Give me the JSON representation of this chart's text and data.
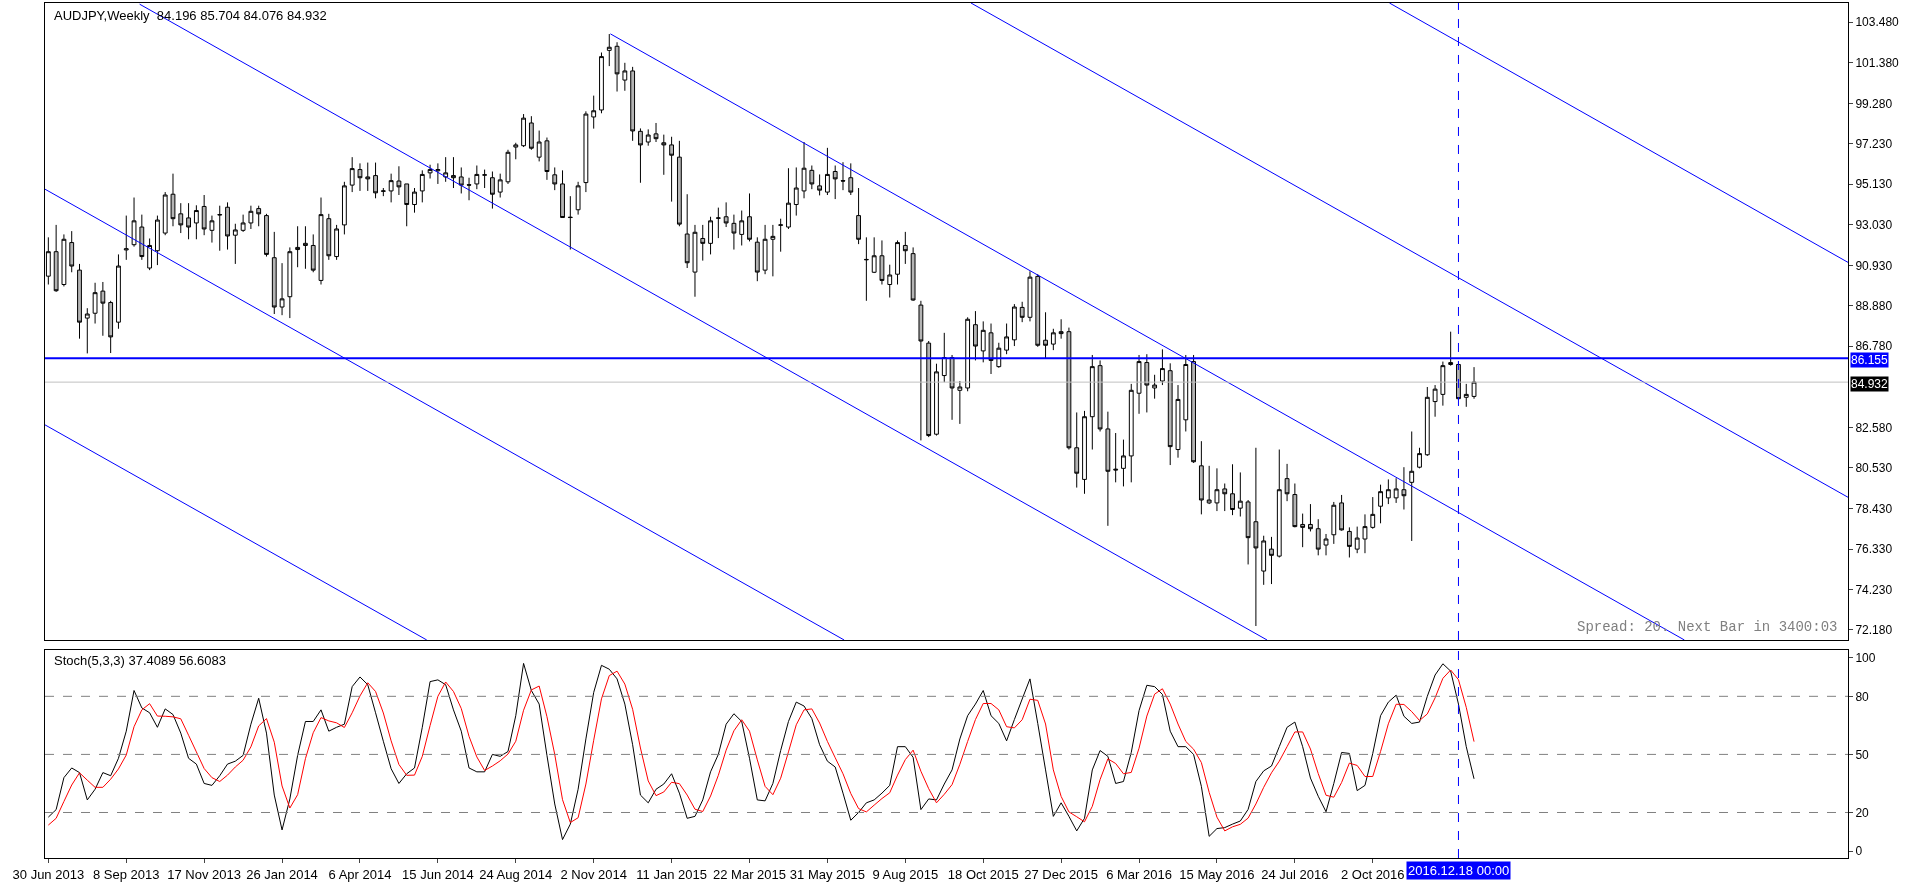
{
  "chart_data": [
    {
      "type": "candlestick",
      "title": "AUDJPY,Weekly  84.196 85.704 84.076 84.932",
      "x": [
        "2013-06-30",
        "2013-07-07",
        "2013-07-14",
        "2013-07-21",
        "2013-07-28",
        "2013-08-04",
        "2013-08-11",
        "2013-08-18",
        "2013-08-25",
        "2013-09-01",
        "2013-09-08",
        "2013-09-15",
        "2013-09-22",
        "2013-09-29",
        "2013-10-06",
        "2013-10-13",
        "2013-10-20",
        "2013-10-27",
        "2013-11-03",
        "2013-11-10",
        "2013-11-17",
        "2013-11-24",
        "2013-12-01",
        "2013-12-08",
        "2013-12-15",
        "2013-12-22",
        "2013-12-29",
        "2014-01-05",
        "2014-01-12",
        "2014-01-19",
        "2014-01-26",
        "2014-02-02",
        "2014-02-09",
        "2014-02-16",
        "2014-02-23",
        "2014-03-02",
        "2014-03-09",
        "2014-03-16",
        "2014-03-23",
        "2014-03-30",
        "2014-04-06",
        "2014-04-13",
        "2014-04-20",
        "2014-04-27",
        "2014-05-04",
        "2014-05-11",
        "2014-05-18",
        "2014-05-25",
        "2014-06-01",
        "2014-06-08",
        "2014-06-15",
        "2014-06-22",
        "2014-06-29",
        "2014-07-06",
        "2014-07-13",
        "2014-07-20",
        "2014-07-27",
        "2014-08-03",
        "2014-08-10",
        "2014-08-17",
        "2014-08-24",
        "2014-08-31",
        "2014-09-07",
        "2014-09-14",
        "2014-09-21",
        "2014-09-28",
        "2014-10-05",
        "2014-10-12",
        "2014-10-19",
        "2014-10-26",
        "2014-11-02",
        "2014-11-09",
        "2014-11-16",
        "2014-11-23",
        "2014-11-30",
        "2014-12-07",
        "2014-12-14",
        "2014-12-21",
        "2014-12-28",
        "2015-01-04",
        "2015-01-11",
        "2015-01-18",
        "2015-01-25",
        "2015-02-01",
        "2015-02-08",
        "2015-02-15",
        "2015-02-22",
        "2015-03-01",
        "2015-03-08",
        "2015-03-15",
        "2015-03-22",
        "2015-03-29",
        "2015-04-05",
        "2015-04-12",
        "2015-04-19",
        "2015-04-26",
        "2015-05-03",
        "2015-05-10",
        "2015-05-17",
        "2015-05-24",
        "2015-05-31",
        "2015-06-07",
        "2015-06-14",
        "2015-06-21",
        "2015-06-28",
        "2015-07-05",
        "2015-07-12",
        "2015-07-19",
        "2015-07-26",
        "2015-08-02",
        "2015-08-09",
        "2015-08-16",
        "2015-08-23",
        "2015-08-30",
        "2015-09-06",
        "2015-09-13",
        "2015-09-20",
        "2015-09-27",
        "2015-10-04",
        "2015-10-11",
        "2015-10-18",
        "2015-10-25",
        "2015-11-01",
        "2015-11-08",
        "2015-11-15",
        "2015-11-22",
        "2015-11-29",
        "2015-12-06",
        "2015-12-13",
        "2015-12-20",
        "2015-12-27",
        "2016-01-03",
        "2016-01-10",
        "2016-01-17",
        "2016-01-24",
        "2016-01-31",
        "2016-02-07",
        "2016-02-14",
        "2016-02-21",
        "2016-02-28",
        "2016-03-06",
        "2016-03-13",
        "2016-03-20",
        "2016-03-27",
        "2016-04-03",
        "2016-04-10",
        "2016-04-17",
        "2016-04-24",
        "2016-05-01",
        "2016-05-08",
        "2016-05-15",
        "2016-05-22",
        "2016-05-29",
        "2016-06-05",
        "2016-06-12",
        "2016-06-19",
        "2016-06-26",
        "2016-07-03",
        "2016-07-10",
        "2016-07-17",
        "2016-07-24",
        "2016-07-31",
        "2016-08-07",
        "2016-08-14",
        "2016-08-21",
        "2016-08-28",
        "2016-09-04",
        "2016-09-11",
        "2016-09-18",
        "2016-09-25",
        "2016-10-02",
        "2016-10-09",
        "2016-10-16",
        "2016-10-23",
        "2016-10-30",
        "2016-11-06",
        "2016-11-13",
        "2016-11-20",
        "2016-11-27",
        "2016-12-04",
        "2016-12-11",
        "2016-12-18",
        "2016-12-25",
        "2017-01-01"
      ],
      "ohlc": [
        [
          90.39,
          92.39,
          89.96,
          91.65
        ],
        [
          91.65,
          93.03,
          89.58,
          89.64
        ],
        [
          89.96,
          92.54,
          89.86,
          92.29
        ],
        [
          92.12,
          92.71,
          90.59,
          90.91
        ],
        [
          90.7,
          91.02,
          87.17,
          88.02
        ],
        [
          88.23,
          88.74,
          86.41,
          88.44
        ],
        [
          88.48,
          90.05,
          87.95,
          89.54
        ],
        [
          89.62,
          90.09,
          87.32,
          89.0
        ],
        [
          89.03,
          89.12,
          86.43,
          87.26
        ],
        [
          88.02,
          91.51,
          87.68,
          90.91
        ],
        [
          91.74,
          93.51,
          91.23,
          91.8
        ],
        [
          92.01,
          94.44,
          91.91,
          93.24
        ],
        [
          92.92,
          93.56,
          91.23,
          91.4
        ],
        [
          90.81,
          92.33,
          90.7,
          91.97
        ],
        [
          91.7,
          93.51,
          90.96,
          93.28
        ],
        [
          92.61,
          94.72,
          92.5,
          94.57
        ],
        [
          94.61,
          95.67,
          92.96,
          93.35
        ],
        [
          93.6,
          94.15,
          92.61,
          93.03
        ],
        [
          93.39,
          94.15,
          92.29,
          92.92
        ],
        [
          93.13,
          94.04,
          92.29,
          93.77
        ],
        [
          93.98,
          94.57,
          92.5,
          92.82
        ],
        [
          92.75,
          93.51,
          92.12,
          93.24
        ],
        [
          93.54,
          94.02,
          91.7,
          93.56
        ],
        [
          93.94,
          94.19,
          91.76,
          92.46
        ],
        [
          92.5,
          93.09,
          91.02,
          92.77
        ],
        [
          92.75,
          93.56,
          92.67,
          93.13
        ],
        [
          93.13,
          94.02,
          92.82,
          93.73
        ],
        [
          93.87,
          94.02,
          92.96,
          93.6
        ],
        [
          93.51,
          93.6,
          91.4,
          91.51
        ],
        [
          91.34,
          92.67,
          88.44,
          88.8
        ],
        [
          88.8,
          91.06,
          88.38,
          89.22
        ],
        [
          89.33,
          91.87,
          88.23,
          91.65
        ],
        [
          91.76,
          92.96,
          90.85,
          91.87
        ],
        [
          91.97,
          92.96,
          90.77,
          92.08
        ],
        [
          91.97,
          92.54,
          90.59,
          90.7
        ],
        [
          90.17,
          94.44,
          89.96,
          93.56
        ],
        [
          93.35,
          93.6,
          91.23,
          91.44
        ],
        [
          91.4,
          93.03,
          91.23,
          92.82
        ],
        [
          93.03,
          95.25,
          92.54,
          95.04
        ],
        [
          95.08,
          96.52,
          94.72,
          95.93
        ],
        [
          95.88,
          96.2,
          94.78,
          95.46
        ],
        [
          95.5,
          96.24,
          94.78,
          95.4
        ],
        [
          95.57,
          96.24,
          94.4,
          94.68
        ],
        [
          94.76,
          94.93,
          94.51,
          94.78
        ],
        [
          94.78,
          95.67,
          94.19,
          95.31
        ],
        [
          95.29,
          96.05,
          94.57,
          94.99
        ],
        [
          95.14,
          95.14,
          92.96,
          94.08
        ],
        [
          94.08,
          94.93,
          93.66,
          94.72
        ],
        [
          94.78,
          95.84,
          94.19,
          95.63
        ],
        [
          95.71,
          96.13,
          95.42,
          95.88
        ],
        [
          95.82,
          96.2,
          95.14,
          95.88
        ],
        [
          95.5,
          96.52,
          95.25,
          95.71
        ],
        [
          95.57,
          96.52,
          94.93,
          95.46
        ],
        [
          95.5,
          95.99,
          94.65,
          95.08
        ],
        [
          95.1,
          95.46,
          94.3,
          95.08
        ],
        [
          95.14,
          96.09,
          94.87,
          95.63
        ],
        [
          95.59,
          95.88,
          94.93,
          95.61
        ],
        [
          95.46,
          95.78,
          93.87,
          94.61
        ],
        [
          94.72,
          95.67,
          94.44,
          95.35
        ],
        [
          95.25,
          96.9,
          95.14,
          96.77
        ],
        [
          97.04,
          97.26,
          96.41,
          97.15
        ],
        [
          97.11,
          98.74,
          97.04,
          98.53
        ],
        [
          98.28,
          98.63,
          96.9,
          96.98
        ],
        [
          96.52,
          97.89,
          96.3,
          97.3
        ],
        [
          97.36,
          97.53,
          95.35,
          95.78
        ],
        [
          95.61,
          95.99,
          94.82,
          95.14
        ],
        [
          95.14,
          95.84,
          93.41,
          93.41
        ],
        [
          93.43,
          94.51,
          91.76,
          93.41
        ],
        [
          93.81,
          95.25,
          93.56,
          95.04
        ],
        [
          95.21,
          98.88,
          94.72,
          98.74
        ],
        [
          98.59,
          99.69,
          97.99,
          98.91
        ],
        [
          98.95,
          101.91,
          98.78,
          101.7
        ],
        [
          102.02,
          102.86,
          101.21,
          102.18
        ],
        [
          102.23,
          102.44,
          99.9,
          100.81
        ],
        [
          100.49,
          101.38,
          99.94,
          100.96
        ],
        [
          100.96,
          101.17,
          97.36,
          97.87
        ],
        [
          97.85,
          98.0,
          95.2,
          97.15
        ],
        [
          97.3,
          97.95,
          97.11,
          97.66
        ],
        [
          97.72,
          98.28,
          97.3,
          97.47
        ],
        [
          97.26,
          97.68,
          95.61,
          97.15
        ],
        [
          97.15,
          97.57,
          94.23,
          96.62
        ],
        [
          96.52,
          97.36,
          92.96,
          93.07
        ],
        [
          92.56,
          94.61,
          90.81,
          91.08
        ],
        [
          90.6,
          93.03,
          89.33,
          92.65
        ],
        [
          92.33,
          93.03,
          91.19,
          92.08
        ],
        [
          92.08,
          93.45,
          91.51,
          93.24
        ],
        [
          93.37,
          93.92,
          92.35,
          93.39
        ],
        [
          93.45,
          94.19,
          92.92,
          93.13
        ],
        [
          93.11,
          93.56,
          91.76,
          92.61
        ],
        [
          92.54,
          93.77,
          91.97,
          93.24
        ],
        [
          93.45,
          94.65,
          92.18,
          92.29
        ],
        [
          92.14,
          92.39,
          90.13,
          90.6
        ],
        [
          90.7,
          93.03,
          90.49,
          92.29
        ],
        [
          92.29,
          93.03,
          90.38,
          92.44
        ],
        [
          93.01,
          93.35,
          91.65,
          93.03
        ],
        [
          92.92,
          95.95,
          92.82,
          94.15
        ],
        [
          94.08,
          95.99,
          93.51,
          94.93
        ],
        [
          94.78,
          97.3,
          94.4,
          95.95
        ],
        [
          95.84,
          96.09,
          94.87,
          95.14
        ],
        [
          95.04,
          95.63,
          94.55,
          94.82
        ],
        [
          94.72,
          97.0,
          94.57,
          95.63
        ],
        [
          95.78,
          96.09,
          94.36,
          95.4
        ],
        [
          95.31,
          96.26,
          94.82,
          95.29
        ],
        [
          95.46,
          96.2,
          94.57,
          94.72
        ],
        [
          93.51,
          94.93,
          92.04,
          92.29
        ],
        [
          91.23,
          92.39,
          89.12,
          91.25
        ],
        [
          90.59,
          92.39,
          90.55,
          91.44
        ],
        [
          91.44,
          92.23,
          89.96,
          90.17
        ],
        [
          89.96,
          90.98,
          89.29,
          90.45
        ],
        [
          90.49,
          92.23,
          89.96,
          92.12
        ],
        [
          91.97,
          92.67,
          91.02,
          91.7
        ],
        [
          91.55,
          91.87,
          89.12,
          89.16
        ],
        [
          88.9,
          89.12,
          81.93,
          87.05
        ],
        [
          86.94,
          87.05,
          82.1,
          82.18
        ],
        [
          82.25,
          85.88,
          82.18,
          85.46
        ],
        [
          85.27,
          87.47,
          84.93,
          86.2
        ],
        [
          86.2,
          86.33,
          82.99,
          84.63
        ],
        [
          84.51,
          84.99,
          82.78,
          84.68
        ],
        [
          84.63,
          88.27,
          84.46,
          88.17
        ],
        [
          87.89,
          88.59,
          86.05,
          86.79
        ],
        [
          86.54,
          88.06,
          85.95,
          87.6
        ],
        [
          87.47,
          87.95,
          85.35,
          86.05
        ],
        [
          85.73,
          86.96,
          85.67,
          86.68
        ],
        [
          86.58,
          87.95,
          86.37,
          87.26
        ],
        [
          87.11,
          88.95,
          86.79,
          88.8
        ],
        [
          88.78,
          89.07,
          88.02,
          88.27
        ],
        [
          88.27,
          90.64,
          88.06,
          90.34
        ],
        [
          90.38,
          90.49,
          86.75,
          86.83
        ],
        [
          87.09,
          88.53,
          86.16,
          86.83
        ],
        [
          86.89,
          87.68,
          86.58,
          87.47
        ],
        [
          87.53,
          88.17,
          87.17,
          87.43
        ],
        [
          87.53,
          87.74,
          81.46,
          81.55
        ],
        [
          81.55,
          83.37,
          79.5,
          80.24
        ],
        [
          79.92,
          83.45,
          79.18,
          83.15
        ],
        [
          83.15,
          86.33,
          81.46,
          85.73
        ],
        [
          85.78,
          86.05,
          82.39,
          82.52
        ],
        [
          82.52,
          83.41,
          77.53,
          80.34
        ],
        [
          80.45,
          82.31,
          79.77,
          80.41
        ],
        [
          80.49,
          81.97,
          79.56,
          81.13
        ],
        [
          81.13,
          84.84,
          79.77,
          84.51
        ],
        [
          84.36,
          86.33,
          83.3,
          85.99
        ],
        [
          85.94,
          86.37,
          83.37,
          84.78
        ],
        [
          84.63,
          85.31,
          84.08,
          84.78
        ],
        [
          84.99,
          86.62,
          84.78,
          85.63
        ],
        [
          85.52,
          85.9,
          80.66,
          81.61
        ],
        [
          81.46,
          84.78,
          81.04,
          84.04
        ],
        [
          82.99,
          86.33,
          82.39,
          85.84
        ],
        [
          85.99,
          86.33,
          80.77,
          80.83
        ],
        [
          80.62,
          81.89,
          78.12,
          78.86
        ],
        [
          78.71,
          80.62,
          78.65,
          78.86
        ],
        [
          78.71,
          80.49,
          78.29,
          79.39
        ],
        [
          79.43,
          79.71,
          78.29,
          79.18
        ],
        [
          79.18,
          80.7,
          78.08,
          78.37
        ],
        [
          78.44,
          80.28,
          78.01,
          78.8
        ],
        [
          78.76,
          78.86,
          75.54,
          76.92
        ],
        [
          77.74,
          81.55,
          72.37,
          76.39
        ],
        [
          75.2,
          77.02,
          74.49,
          76.75
        ],
        [
          76.33,
          76.96,
          74.53,
          76.01
        ],
        [
          75.97,
          81.46,
          75.9,
          79.39
        ],
        [
          79.96,
          80.72,
          78.8,
          79.18
        ],
        [
          79.14,
          79.71,
          77.45,
          77.49
        ],
        [
          77.6,
          78.16,
          76.43,
          77.45
        ],
        [
          77.6,
          78.65,
          77.24,
          77.38
        ],
        [
          77.38,
          77.87,
          76.01,
          76.33
        ],
        [
          76.54,
          77.11,
          76.01,
          76.85
        ],
        [
          77.07,
          78.76,
          76.6,
          78.59
        ],
        [
          78.71,
          79.12,
          77.28,
          77.32
        ],
        [
          77.24,
          77.45,
          75.9,
          76.47
        ],
        [
          76.33,
          77.49,
          76.12,
          76.9
        ],
        [
          76.85,
          78.12,
          76.12,
          77.49
        ],
        [
          77.45,
          79.01,
          77.38,
          78.12
        ],
        [
          78.54,
          79.65,
          77.66,
          79.29
        ],
        [
          78.97,
          79.92,
          78.65,
          79.39
        ],
        [
          78.97,
          79.98,
          78.71,
          79.43
        ],
        [
          79.39,
          80.55,
          78.37,
          79.08
        ],
        [
          79.77,
          82.39,
          76.75,
          80.34
        ],
        [
          80.55,
          81.55,
          80.49,
          81.25
        ],
        [
          81.19,
          84.68,
          81.13,
          84.15
        ],
        [
          83.93,
          84.78,
          83.15,
          84.57
        ],
        [
          84.3,
          85.99,
          83.72,
          85.78
        ],
        [
          85.84,
          87.53,
          85.78,
          85.94
        ],
        [
          85.84,
          85.99,
          84.04,
          84.08
        ],
        [
          84.15,
          84.84,
          83.66,
          84.3
        ],
        [
          84.196,
          85.704,
          84.076,
          84.932
        ]
      ],
      "series": [
        {
          "type": "line",
          "color": "#0000ff",
          "x": [
            "2016-10-17",
            "2017-12-03"
          ],
          "values": [
            104.46,
            91.1
          ]
        },
        {
          "type": "line",
          "color": "#0000ff",
          "x": [
            "2015-10-07",
            "2017-12-03"
          ],
          "values": [
            104.46,
            79.0
          ]
        },
        {
          "type": "line",
          "color": "#0000ff",
          "x": [
            "2014-11-17",
            "2017-07-09"
          ],
          "values": [
            102.87,
            71.65
          ]
        },
        {
          "type": "line",
          "color": "#0000ff",
          "x": [
            "2013-09-20",
            "2016-06-29"
          ],
          "values": [
            104.4,
            71.65
          ]
        },
        {
          "type": "line",
          "color": "#0000ff",
          "x": [
            "2013-06-27",
            "2015-06-15"
          ],
          "values": [
            94.87,
            71.65
          ]
        },
        {
          "type": "line",
          "color": "#0000ff",
          "x": [
            "2013-06-27",
            "2014-06-05"
          ],
          "values": [
            82.73,
            71.65
          ]
        }
      ],
      "xlim": [
        "2013-06-27",
        "2017-12-03"
      ],
      "ylim": [
        71.65,
        104.46
      ],
      "yticks": [
        {
          "value": 103.48,
          "label": "103.480"
        },
        {
          "value": 101.38,
          "label": "101.380"
        },
        {
          "value": 99.28,
          "label": "99.280"
        },
        {
          "value": 97.23,
          "label": "97.230"
        },
        {
          "value": 95.13,
          "label": "95.130"
        },
        {
          "value": 93.03,
          "label": "93.030"
        },
        {
          "value": 90.93,
          "label": "90.930"
        },
        {
          "value": 88.88,
          "label": "88.880"
        },
        {
          "value": 86.78,
          "label": "86.780"
        },
        {
          "value": 82.58,
          "label": "82.580"
        },
        {
          "value": 80.53,
          "label": "80.530"
        },
        {
          "value": 78.43,
          "label": "78.430"
        },
        {
          "value": 76.33,
          "label": "76.330"
        },
        {
          "value": 74.23,
          "label": "74.230"
        },
        {
          "value": 72.18,
          "label": "72.180"
        }
      ],
      "tick_labels": "y",
      "ref_lines": [
        {
          "axis": "y",
          "value": 86.155,
          "label": "86.155",
          "color": "#0000ff"
        },
        {
          "axis": "y",
          "value": 84.932,
          "label": "84.932",
          "color": "#c0c0c0"
        },
        {
          "axis": "x",
          "value": "2016-12-18",
          "color": "#0000ff",
          "line_style": "dashed"
        }
      ],
      "annotations": [
        "Spread: 20. Next Bar in 3400:03"
      ]
    },
    {
      "type": "line",
      "title": "Stoch(5,3,3) 37.4089 56.6083",
      "x": [
        "2013-06-30",
        "2013-07-07",
        "2013-07-14",
        "2013-07-21",
        "2013-07-28",
        "2013-08-04",
        "2013-08-11",
        "2013-08-18",
        "2013-08-25",
        "2013-09-01",
        "2013-09-08",
        "2013-09-15",
        "2013-09-22",
        "2013-09-29",
        "2013-10-06",
        "2013-10-13",
        "2013-10-20",
        "2013-10-27",
        "2013-11-03",
        "2013-11-10",
        "2013-11-17",
        "2013-11-24",
        "2013-12-01",
        "2013-12-08",
        "2013-12-15",
        "2013-12-22",
        "2013-12-29",
        "2014-01-05",
        "2014-01-12",
        "2014-01-19",
        "2014-01-26",
        "2014-02-02",
        "2014-02-09",
        "2014-02-16",
        "2014-02-23",
        "2014-03-02",
        "2014-03-09",
        "2014-03-16",
        "2014-03-23",
        "2014-03-30",
        "2014-04-06",
        "2014-04-13",
        "2014-04-20",
        "2014-04-27",
        "2014-05-04",
        "2014-05-11",
        "2014-05-18",
        "2014-05-25",
        "2014-06-01",
        "2014-06-08",
        "2014-06-15",
        "2014-06-22",
        "2014-06-29",
        "2014-07-06",
        "2014-07-13",
        "2014-07-20",
        "2014-07-27",
        "2014-08-03",
        "2014-08-10",
        "2014-08-17",
        "2014-08-24",
        "2014-08-31",
        "2014-09-07",
        "2014-09-14",
        "2014-09-21",
        "2014-09-28",
        "2014-10-05",
        "2014-10-12",
        "2014-10-19",
        "2014-10-26",
        "2014-11-02",
        "2014-11-09",
        "2014-11-16",
        "2014-11-23",
        "2014-11-30",
        "2014-12-07",
        "2014-12-14",
        "2014-12-21",
        "2014-12-28",
        "2015-01-04",
        "2015-01-11",
        "2015-01-18",
        "2015-01-25",
        "2015-02-01",
        "2015-02-08",
        "2015-02-15",
        "2015-02-22",
        "2015-03-01",
        "2015-03-08",
        "2015-03-15",
        "2015-03-22",
        "2015-03-29",
        "2015-04-05",
        "2015-04-12",
        "2015-04-19",
        "2015-04-26",
        "2015-05-03",
        "2015-05-10",
        "2015-05-17",
        "2015-05-24",
        "2015-05-31",
        "2015-06-07",
        "2015-06-14",
        "2015-06-21",
        "2015-06-28",
        "2015-07-05",
        "2015-07-12",
        "2015-07-19",
        "2015-07-26",
        "2015-08-02",
        "2015-08-09",
        "2015-08-16",
        "2015-08-23",
        "2015-08-30",
        "2015-09-06",
        "2015-09-13",
        "2015-09-20",
        "2015-09-27",
        "2015-10-04",
        "2015-10-11",
        "2015-10-18",
        "2015-10-25",
        "2015-11-01",
        "2015-11-08",
        "2015-11-15",
        "2015-11-22",
        "2015-11-29",
        "2015-12-06",
        "2015-12-13",
        "2015-12-20",
        "2015-12-27",
        "2016-01-03",
        "2016-01-10",
        "2016-01-17",
        "2016-01-24",
        "2016-01-31",
        "2016-02-07",
        "2016-02-14",
        "2016-02-21",
        "2016-02-28",
        "2016-03-06",
        "2016-03-13",
        "2016-03-20",
        "2016-03-27",
        "2016-04-03",
        "2016-04-10",
        "2016-04-17",
        "2016-04-24",
        "2016-05-01",
        "2016-05-08",
        "2016-05-15",
        "2016-05-22",
        "2016-05-29",
        "2016-06-05",
        "2016-06-12",
        "2016-06-19",
        "2016-06-26",
        "2016-07-03",
        "2016-07-10",
        "2016-07-17",
        "2016-07-24",
        "2016-07-31",
        "2016-08-07",
        "2016-08-14",
        "2016-08-21",
        "2016-08-28",
        "2016-09-04",
        "2016-09-11",
        "2016-09-18",
        "2016-09-25",
        "2016-10-02",
        "2016-10-09",
        "2016-10-16",
        "2016-10-23",
        "2016-10-30",
        "2016-11-06",
        "2016-11-13",
        "2016-11-20",
        "2016-11-27",
        "2016-12-04",
        "2016-12-11",
        "2016-12-18",
        "2016-12-25",
        "2017-01-01"
      ],
      "series": [
        {
          "color": "#000000",
          "values": [
            17.6,
            21.5,
            38,
            43,
            40.6,
            26.5,
            32,
            40.6,
            39,
            48,
            62,
            83,
            74,
            71.5,
            64,
            73.5,
            70.6,
            61,
            48,
            45,
            35,
            34,
            39,
            45,
            46.5,
            49.5,
            65.6,
            79,
            61,
            29,
            11,
            27,
            49.5,
            67,
            67,
            73,
            62,
            64,
            65.6,
            85,
            90,
            86,
            71.5,
            56.8,
            42.6,
            35,
            40,
            43,
            64,
            87.6,
            88.5,
            86,
            73,
            62,
            43,
            41,
            41,
            50,
            49,
            51.5,
            70,
            97,
            83,
            76,
            49.5,
            24.4,
            6,
            14,
            32,
            58,
            82,
            96,
            94,
            89,
            76,
            55,
            29,
            25,
            32,
            34.7,
            40,
            30,
            17,
            18,
            26.5,
            41,
            50,
            65.6,
            71,
            67,
            48,
            26.5,
            26,
            35,
            52,
            67,
            77,
            75,
            68.5,
            55,
            46.5,
            43.5,
            30,
            16,
            20,
            25,
            26.5,
            30,
            34,
            54,
            54,
            48.5,
            21.5,
            27,
            26.5,
            34.7,
            42,
            58,
            70,
            76,
            83,
            70,
            66,
            57,
            68,
            78.6,
            89,
            66,
            42,
            18,
            25,
            18,
            10.5,
            17,
            42,
            52,
            49,
            35,
            36,
            51,
            72.6,
            85.7,
            85,
            81,
            62,
            54,
            54,
            50,
            33.5,
            7.7,
            11.7,
            12.2,
            14,
            15.6,
            21.6,
            36,
            41.5,
            44,
            54,
            64,
            66.7,
            54,
            37.8,
            28.4,
            20.4,
            35,
            51,
            50.5,
            31.3,
            34,
            50.5,
            70,
            77,
            80.6,
            69.7,
            66,
            66.7,
            80,
            91,
            96.8,
            93,
            76,
            54,
            37.4
          ]
        },
        {
          "color": "#ff0000",
          "values": [
            13.5,
            17,
            25.7,
            34.2,
            40.5,
            36.7,
            33,
            33,
            37.2,
            42.5,
            49.7,
            64.3,
            73,
            76.2,
            69.8,
            69.7,
            69.4,
            68.4,
            59.9,
            51.3,
            42.7,
            38,
            36,
            39.3,
            43.5,
            47,
            53.9,
            64.7,
            68.5,
            56.3,
            33.7,
            22.3,
            29.2,
            47.8,
            61.2,
            69,
            67.3,
            66.3,
            63.9,
            71.5,
            80.2,
            87,
            82.5,
            71.4,
            57,
            44.8,
            39.2,
            39.3,
            49,
            64.9,
            80,
            87.4,
            82.5,
            73.7,
            59.3,
            48.7,
            41.7,
            44,
            46.7,
            50.2,
            56.8,
            72.8,
            83.3,
            85.3,
            69.5,
            50,
            26.6,
            14.8,
            17.3,
            34.7,
            57.3,
            78.7,
            90.7,
            93,
            86.3,
            73.3,
            53.3,
            36.3,
            28.7,
            30.6,
            35.6,
            34.9,
            29,
            21.7,
            20.5,
            28.5,
            39.2,
            52.2,
            62.2,
            67.9,
            62,
            47.2,
            33.5,
            29.2,
            37.7,
            51.3,
            65.3,
            73,
            73.5,
            66.2,
            56.7,
            48.3,
            40,
            29.8,
            22,
            20.3,
            23.8,
            27.2,
            30.2,
            39.3,
            47.3,
            52.2,
            41.3,
            32.3,
            25,
            29.4,
            34.4,
            44.9,
            56.7,
            68,
            76.3,
            76.3,
            73,
            64.3,
            63.7,
            67.9,
            78.5,
            77.9,
            65.7,
            42,
            28.3,
            20.3,
            17.8,
            15.2,
            23.2,
            37,
            47.7,
            45.3,
            40,
            40.7,
            53.2,
            69.8,
            81.1,
            83.9,
            76,
            65.7,
            56.7,
            52.7,
            45.8,
            30.4,
            17.6,
            10.5,
            12.6,
            13.9,
            17.1,
            24.4,
            33,
            40.5,
            46.5,
            54,
            61.6,
            61.6,
            52.8,
            40.1,
            28.9,
            27.9,
            35.5,
            45.5,
            44.3,
            38.6,
            38.6,
            51.5,
            65.8,
            75.9,
            75.8,
            72.1,
            67.5,
            70.9,
            79.2,
            89.3,
            93.6,
            88.6,
            74.3,
            56.6
          ]
        }
      ],
      "xlim": [
        "2013-06-27",
        "2017-12-03"
      ],
      "xticks": [
        {
          "value": "2013-06-30",
          "label": "30 Jun 2013"
        },
        {
          "value": "2013-09-08",
          "label": "8 Sep 2013"
        },
        {
          "value": "2013-11-17",
          "label": "17 Nov 2013"
        },
        {
          "value": "2014-01-26",
          "label": "26 Jan 2014"
        },
        {
          "value": "2014-04-06",
          "label": "6 Apr 2014"
        },
        {
          "value": "2014-06-15",
          "label": "15 Jun 2014"
        },
        {
          "value": "2014-08-24",
          "label": "24 Aug 2014"
        },
        {
          "value": "2014-11-02",
          "label": "2 Nov 2014"
        },
        {
          "value": "2015-01-11",
          "label": "11 Jan 2015"
        },
        {
          "value": "2015-03-22",
          "label": "22 Mar 2015"
        },
        {
          "value": "2015-05-31",
          "label": "31 May 2015"
        },
        {
          "value": "2015-08-09",
          "label": "9 Aug 2015"
        },
        {
          "value": "2015-10-18",
          "label": "18 Oct 2015"
        },
        {
          "value": "2015-12-27",
          "label": "27 Dec 2015"
        },
        {
          "value": "2016-03-06",
          "label": "6 Mar 2016"
        },
        {
          "value": "2016-05-15",
          "label": "15 May 2016"
        },
        {
          "value": "2016-07-24",
          "label": "24 Jul 2016"
        },
        {
          "value": "2016-10-02",
          "label": "2 Oct 2016"
        }
      ],
      "ylim": [
        -3.5,
        103.8
      ],
      "yticks": [
        0,
        20,
        50,
        80,
        100
      ],
      "ref_lines": [
        {
          "axis": "y",
          "value": 20,
          "color": "#808080",
          "line_style": "dashed"
        },
        {
          "axis": "y",
          "value": 50,
          "color": "#808080",
          "line_style": "dashed"
        },
        {
          "axis": "y",
          "value": 80,
          "color": "#808080",
          "line_style": "dashed"
        },
        {
          "axis": "x",
          "value": "2016-12-18",
          "label": "2016.12.18 00:00",
          "color": "#0000ff",
          "line_style": "dashed"
        }
      ]
    }
  ]
}
